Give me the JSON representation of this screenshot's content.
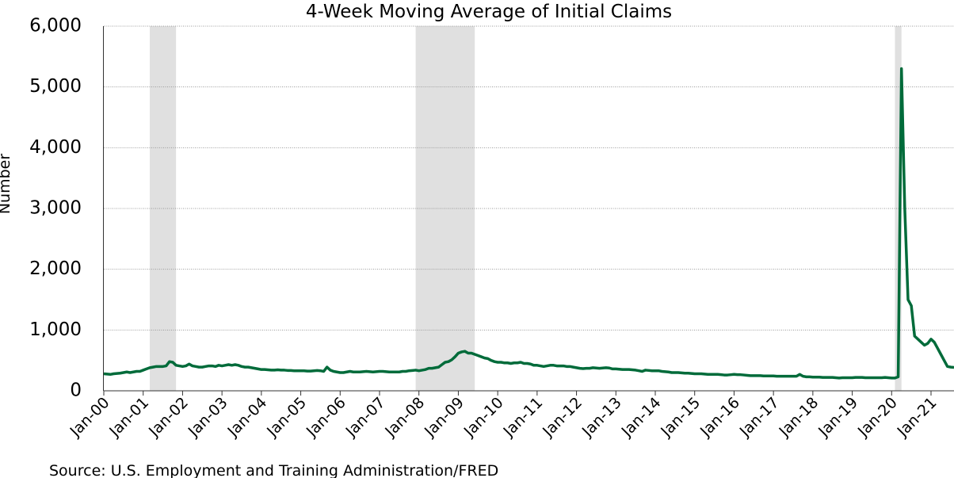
{
  "chart_data": {
    "type": "line",
    "title": "4-Week Moving Average of Initial Claims",
    "y_label": "Number",
    "source": "Source: U.S. Employment and Training Administration/FRED",
    "color": "#006b3a",
    "recession_color": "#e0e0e0",
    "grid": true,
    "xlim": [
      "2000-01",
      "2021-08"
    ],
    "ylim": [
      0,
      6000
    ],
    "yticks": [
      0,
      {
        "value": 1000,
        "label": "1,000"
      },
      {
        "value": 2000,
        "label": "2,000"
      },
      {
        "value": 3000,
        "label": "3,000"
      },
      {
        "value": 4000,
        "label": "4,000"
      },
      {
        "value": 5000,
        "label": "5,000"
      },
      {
        "value": 6000,
        "label": "6,000"
      }
    ],
    "xticks": [
      {
        "value": "2000-01",
        "label": "Jan-00"
      },
      {
        "value": "2001-01",
        "label": "Jan-01"
      },
      {
        "value": "2002-01",
        "label": "Jan-02"
      },
      {
        "value": "2003-01",
        "label": "Jan-03"
      },
      {
        "value": "2004-01",
        "label": "Jan-04"
      },
      {
        "value": "2005-01",
        "label": "Jan-05"
      },
      {
        "value": "2006-01",
        "label": "Jan-06"
      },
      {
        "value": "2007-01",
        "label": "Jan-07"
      },
      {
        "value": "2008-01",
        "label": "Jan-08"
      },
      {
        "value": "2009-01",
        "label": "Jan-09"
      },
      {
        "value": "2010-01",
        "label": "Jan-10"
      },
      {
        "value": "2011-01",
        "label": "Jan-11"
      },
      {
        "value": "2012-01",
        "label": "Jan-12"
      },
      {
        "value": "2013-01",
        "label": "Jan-13"
      },
      {
        "value": "2014-01",
        "label": "Jan-14"
      },
      {
        "value": "2015-01",
        "label": "Jan-15"
      },
      {
        "value": "2016-01",
        "label": "Jan-16"
      },
      {
        "value": "2017-01",
        "label": "Jan-17"
      },
      {
        "value": "2018-01",
        "label": "Jan-18"
      },
      {
        "value": "2019-01",
        "label": "Jan-19"
      },
      {
        "value": "2020-01",
        "label": "Jan-20"
      },
      {
        "value": "2021-01",
        "label": "Jan-21"
      }
    ],
    "recessions": [
      [
        "2001-03",
        "2001-11"
      ],
      [
        "2007-12",
        "2009-06"
      ],
      [
        "2020-02",
        "2020-04"
      ]
    ],
    "x": [
      "2000-01",
      "2000-02",
      "2000-03",
      "2000-04",
      "2000-05",
      "2000-06",
      "2000-07",
      "2000-08",
      "2000-09",
      "2000-10",
      "2000-11",
      "2000-12",
      "2001-01",
      "2001-02",
      "2001-03",
      "2001-04",
      "2001-05",
      "2001-06",
      "2001-07",
      "2001-08",
      "2001-09",
      "2001-10",
      "2001-11",
      "2001-12",
      "2002-01",
      "2002-02",
      "2002-03",
      "2002-04",
      "2002-05",
      "2002-06",
      "2002-07",
      "2002-08",
      "2002-09",
      "2002-10",
      "2002-11",
      "2002-12",
      "2003-01",
      "2003-02",
      "2003-03",
      "2003-04",
      "2003-05",
      "2003-06",
      "2003-07",
      "2003-08",
      "2003-09",
      "2003-10",
      "2003-11",
      "2003-12",
      "2004-01",
      "2004-02",
      "2004-03",
      "2004-04",
      "2004-05",
      "2004-06",
      "2004-07",
      "2004-08",
      "2004-09",
      "2004-10",
      "2004-11",
      "2004-12",
      "2005-01",
      "2005-02",
      "2005-03",
      "2005-04",
      "2005-05",
      "2005-06",
      "2005-07",
      "2005-08",
      "2005-09",
      "2005-10",
      "2005-11",
      "2005-12",
      "2006-01",
      "2006-02",
      "2006-03",
      "2006-04",
      "2006-05",
      "2006-06",
      "2006-07",
      "2006-08",
      "2006-09",
      "2006-10",
      "2006-11",
      "2006-12",
      "2007-01",
      "2007-02",
      "2007-03",
      "2007-04",
      "2007-05",
      "2007-06",
      "2007-07",
      "2007-08",
      "2007-09",
      "2007-10",
      "2007-11",
      "2007-12",
      "2008-01",
      "2008-02",
      "2008-03",
      "2008-04",
      "2008-05",
      "2008-06",
      "2008-07",
      "2008-08",
      "2008-09",
      "2008-10",
      "2008-11",
      "2008-12",
      "2009-01",
      "2009-02",
      "2009-03",
      "2009-04",
      "2009-05",
      "2009-06",
      "2009-07",
      "2009-08",
      "2009-09",
      "2009-10",
      "2009-11",
      "2009-12",
      "2010-01",
      "2010-02",
      "2010-03",
      "2010-04",
      "2010-05",
      "2010-06",
      "2010-07",
      "2010-08",
      "2010-09",
      "2010-10",
      "2010-11",
      "2010-12",
      "2011-01",
      "2011-02",
      "2011-03",
      "2011-04",
      "2011-05",
      "2011-06",
      "2011-07",
      "2011-08",
      "2011-09",
      "2011-10",
      "2011-11",
      "2011-12",
      "2012-01",
      "2012-02",
      "2012-03",
      "2012-04",
      "2012-05",
      "2012-06",
      "2012-07",
      "2012-08",
      "2012-09",
      "2012-10",
      "2012-11",
      "2012-12",
      "2013-01",
      "2013-02",
      "2013-03",
      "2013-04",
      "2013-05",
      "2013-06",
      "2013-07",
      "2013-08",
      "2013-09",
      "2013-10",
      "2013-11",
      "2013-12",
      "2014-01",
      "2014-02",
      "2014-03",
      "2014-04",
      "2014-05",
      "2014-06",
      "2014-07",
      "2014-08",
      "2014-09",
      "2014-10",
      "2014-11",
      "2014-12",
      "2015-01",
      "2015-02",
      "2015-03",
      "2015-04",
      "2015-05",
      "2015-06",
      "2015-07",
      "2015-08",
      "2015-09",
      "2015-10",
      "2015-11",
      "2015-12",
      "2016-01",
      "2016-02",
      "2016-03",
      "2016-04",
      "2016-05",
      "2016-06",
      "2016-07",
      "2016-08",
      "2016-09",
      "2016-10",
      "2016-11",
      "2016-12",
      "2017-01",
      "2017-02",
      "2017-03",
      "2017-04",
      "2017-05",
      "2017-06",
      "2017-07",
      "2017-08",
      "2017-09",
      "2017-10",
      "2017-11",
      "2017-12",
      "2018-01",
      "2018-02",
      "2018-03",
      "2018-04",
      "2018-05",
      "2018-06",
      "2018-07",
      "2018-08",
      "2018-09",
      "2018-10",
      "2018-11",
      "2018-12",
      "2019-01",
      "2019-02",
      "2019-03",
      "2019-04",
      "2019-05",
      "2019-06",
      "2019-07",
      "2019-08",
      "2019-09",
      "2019-10",
      "2019-11",
      "2019-12",
      "2020-01",
      "2020-02",
      "2020-03",
      "2020-04",
      "2020-05",
      "2020-06",
      "2020-07",
      "2020-08",
      "2020-09",
      "2020-10",
      "2020-11",
      "2020-12",
      "2021-01",
      "2021-02",
      "2021-03",
      "2021-04",
      "2021-05",
      "2021-06",
      "2021-07",
      "2021-08"
    ],
    "values": [
      280,
      275,
      270,
      280,
      285,
      290,
      300,
      310,
      300,
      310,
      320,
      320,
      340,
      360,
      380,
      390,
      400,
      400,
      400,
      410,
      480,
      470,
      420,
      410,
      400,
      410,
      440,
      410,
      400,
      390,
      390,
      400,
      410,
      410,
      400,
      420,
      410,
      420,
      430,
      420,
      430,
      420,
      400,
      390,
      390,
      380,
      370,
      360,
      350,
      350,
      345,
      340,
      340,
      345,
      340,
      340,
      335,
      335,
      330,
      330,
      330,
      330,
      325,
      325,
      330,
      335,
      330,
      320,
      390,
      340,
      320,
      310,
      300,
      300,
      310,
      320,
      310,
      310,
      310,
      315,
      320,
      315,
      310,
      315,
      320,
      320,
      315,
      310,
      310,
      310,
      310,
      320,
      320,
      330,
      335,
      340,
      330,
      340,
      350,
      370,
      370,
      380,
      390,
      430,
      470,
      480,
      510,
      560,
      620,
      640,
      650,
      620,
      620,
      600,
      580,
      560,
      540,
      530,
      500,
      480,
      470,
      470,
      460,
      460,
      450,
      460,
      460,
      470,
      450,
      450,
      440,
      420,
      420,
      410,
      400,
      410,
      420,
      420,
      410,
      410,
      410,
      400,
      400,
      390,
      380,
      370,
      365,
      370,
      370,
      380,
      375,
      370,
      375,
      380,
      375,
      360,
      360,
      355,
      350,
      350,
      350,
      345,
      340,
      330,
      320,
      340,
      335,
      330,
      330,
      330,
      320,
      315,
      310,
      300,
      300,
      300,
      295,
      290,
      290,
      285,
      280,
      280,
      280,
      275,
      270,
      270,
      270,
      270,
      265,
      260,
      260,
      265,
      270,
      265,
      265,
      260,
      255,
      250,
      250,
      250,
      250,
      245,
      245,
      245,
      245,
      240,
      240,
      240,
      240,
      240,
      240,
      240,
      270,
      240,
      230,
      230,
      225,
      225,
      225,
      220,
      220,
      220,
      220,
      215,
      210,
      215,
      215,
      215,
      215,
      220,
      220,
      220,
      215,
      215,
      215,
      215,
      215,
      215,
      220,
      215,
      210,
      210,
      230,
      5300,
      3000,
      1500,
      1400,
      900,
      850,
      800,
      750,
      780,
      850,
      800,
      700,
      600,
      500,
      400,
      390,
      385
    ]
  }
}
